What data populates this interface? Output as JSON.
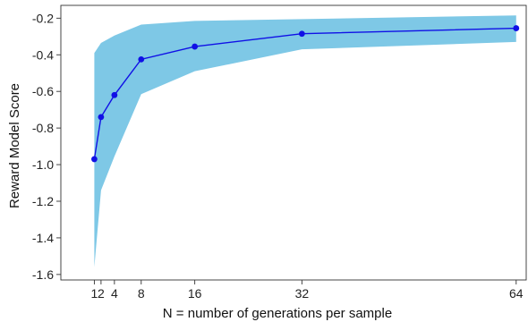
{
  "chart_data": {
    "type": "line",
    "title": "",
    "xlabel": "N = number of generations per sample",
    "ylabel": "Reward Model Score",
    "x": [
      1,
      2,
      4,
      8,
      16,
      32,
      64
    ],
    "xticks": [
      "1",
      "2",
      "4",
      "8",
      "16",
      "32",
      "64"
    ],
    "xlim": [
      -4,
      65.5
    ],
    "ylim": [
      -1.63,
      -0.13
    ],
    "yticks": [
      -1.6,
      -1.4,
      -1.2,
      -1.0,
      -0.8,
      -0.6,
      -0.4,
      -0.2
    ],
    "ytick_labels": [
      "-1.6",
      "-1.4",
      "-1.2",
      "-1.0",
      "-0.8",
      "-0.6",
      "-0.4",
      "-0.2"
    ],
    "grid": false,
    "series": [
      {
        "values": [
          -0.97,
          -0.74,
          -0.62,
          -0.425,
          -0.355,
          -0.285,
          -0.255
        ],
        "band_upper": [
          -0.39,
          -0.335,
          -0.295,
          -0.235,
          -0.215,
          -0.205,
          -0.185
        ],
        "band_lower": [
          -1.56,
          -1.14,
          -0.955,
          -0.615,
          -0.49,
          -0.37,
          -0.33
        ],
        "line_color": "#1010e6",
        "band_color": "#7ec8e6"
      }
    ]
  }
}
